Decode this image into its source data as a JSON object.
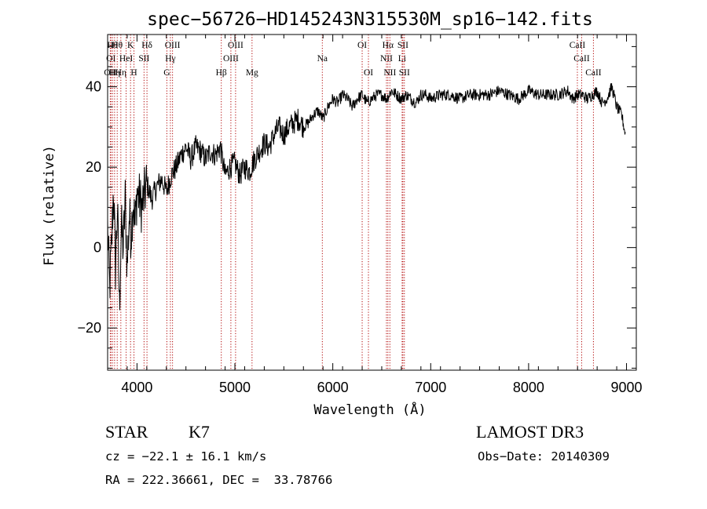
{
  "chart_data": {
    "type": "line",
    "title": "spec−56726−HD145243N315530M_sp16−142.fits",
    "xlabel": "Wavelength (Å)",
    "ylabel": "Flux (relative)",
    "xlim": [
      3700,
      9100
    ],
    "ylim": [
      -30.5,
      53
    ],
    "x_ticks": [
      4000,
      5000,
      6000,
      7000,
      8000,
      9000
    ],
    "y_ticks": [
      -20,
      0,
      20,
      40
    ],
    "series": [
      {
        "name": "flux",
        "x": [
          3700,
          3720,
          3740,
          3760,
          3780,
          3800,
          3820,
          3840,
          3860,
          3880,
          3900,
          3920,
          3940,
          3960,
          3980,
          4000,
          4050,
          4100,
          4150,
          4200,
          4250,
          4300,
          4350,
          4400,
          4450,
          4500,
          4550,
          4600,
          4650,
          4700,
          4750,
          4800,
          4850,
          4900,
          4950,
          5000,
          5050,
          5100,
          5150,
          5200,
          5250,
          5300,
          5350,
          5400,
          5450,
          5500,
          5550,
          5600,
          5650,
          5700,
          5750,
          5800,
          5850,
          5900,
          5950,
          6000,
          6050,
          6100,
          6150,
          6200,
          6250,
          6300,
          6350,
          6400,
          6450,
          6500,
          6550,
          6600,
          6650,
          6700,
          6750,
          6800,
          6850,
          6900,
          6950,
          7000,
          7100,
          7200,
          7300,
          7400,
          7500,
          7600,
          7700,
          7800,
          7900,
          8000,
          8100,
          8200,
          8300,
          8400,
          8450,
          8500,
          8550,
          8600,
          8650,
          8700,
          8750,
          8800,
          8850,
          8900,
          8950,
          8990
        ],
        "y": [
          5,
          -10,
          0,
          15,
          -5,
          10,
          -15,
          5,
          0,
          12,
          -5,
          8,
          3,
          12,
          5,
          14,
          10,
          16,
          12,
          15,
          17,
          14,
          18,
          20,
          23,
          25,
          22,
          25,
          24,
          22,
          24,
          23,
          25,
          18,
          20,
          21,
          18,
          20,
          19,
          22,
          24,
          26,
          25,
          28,
          30,
          28,
          30,
          31,
          32,
          30,
          31,
          33,
          34,
          32,
          35,
          37,
          36,
          38,
          37,
          35,
          37,
          38,
          36,
          37,
          38,
          38,
          37,
          39,
          38,
          37,
          38,
          37,
          36,
          38,
          38,
          37,
          38,
          38,
          37,
          38,
          38,
          38,
          39,
          38,
          37,
          39,
          38,
          38,
          38,
          39,
          37,
          38,
          38,
          37,
          38,
          39,
          36,
          37,
          40,
          35,
          33,
          28
        ]
      }
    ],
    "lines": [
      {
        "w": 3727,
        "row": 2,
        "label": "OII"
      },
      {
        "w": 3734,
        "row": 1,
        "label": "OI"
      },
      {
        "w": 3750,
        "row": 0,
        "label": "Hθ"
      },
      {
        "w": 3771,
        "row": 2,
        "label": "Hη"
      },
      {
        "w": 3798,
        "row": 0,
        "label": "Hθ"
      },
      {
        "w": 3835,
        "row": 2,
        "label": "Hη"
      },
      {
        "w": 3889,
        "row": 1,
        "label": "HeI"
      },
      {
        "w": 3934,
        "row": 0,
        "label": "K"
      },
      {
        "w": 3969,
        "row": 2,
        "label": "H"
      },
      {
        "w": 4072,
        "row": 1,
        "label": "SII"
      },
      {
        "w": 4102,
        "row": 0,
        "label": "Hδ"
      },
      {
        "w": 4305,
        "row": 2,
        "label": "G"
      },
      {
        "w": 4341,
        "row": 1,
        "label": "Hγ"
      },
      {
        "w": 4363,
        "row": 0,
        "label": "OIII"
      },
      {
        "w": 4861,
        "row": 2,
        "label": "Hβ"
      },
      {
        "w": 4959,
        "row": 1,
        "label": "OIII"
      },
      {
        "w": 5007,
        "row": 0,
        "label": "OIII"
      },
      {
        "w": 5175,
        "row": 2,
        "label": "Mg"
      },
      {
        "w": 5893,
        "row": 1,
        "label": "Na"
      },
      {
        "w": 6300,
        "row": 0,
        "label": "OI"
      },
      {
        "w": 6364,
        "row": 2,
        "label": "OI"
      },
      {
        "w": 6548,
        "row": 1,
        "label": "NII"
      },
      {
        "w": 6563,
        "row": 0,
        "label": "Hα"
      },
      {
        "w": 6583,
        "row": 2,
        "label": "NII"
      },
      {
        "w": 6708,
        "row": 1,
        "label": "Li"
      },
      {
        "w": 6716,
        "row": 0,
        "label": "SII"
      },
      {
        "w": 6731,
        "row": 2,
        "label": "SII"
      },
      {
        "w": 8498,
        "row": 0,
        "label": "CaII"
      },
      {
        "w": 8542,
        "row": 1,
        "label": "CaII"
      },
      {
        "w": 8662,
        "row": 2,
        "label": "CaII"
      }
    ]
  },
  "info": {
    "class": "STAR",
    "subclass": "K7",
    "survey": "LAMOST DR3",
    "cz": "cz = −22.1 ± 16.1 km/s",
    "obs_date": "Obs−Date: 20140309",
    "coords": "RA = 222.36661, DEC =  33.78766"
  }
}
